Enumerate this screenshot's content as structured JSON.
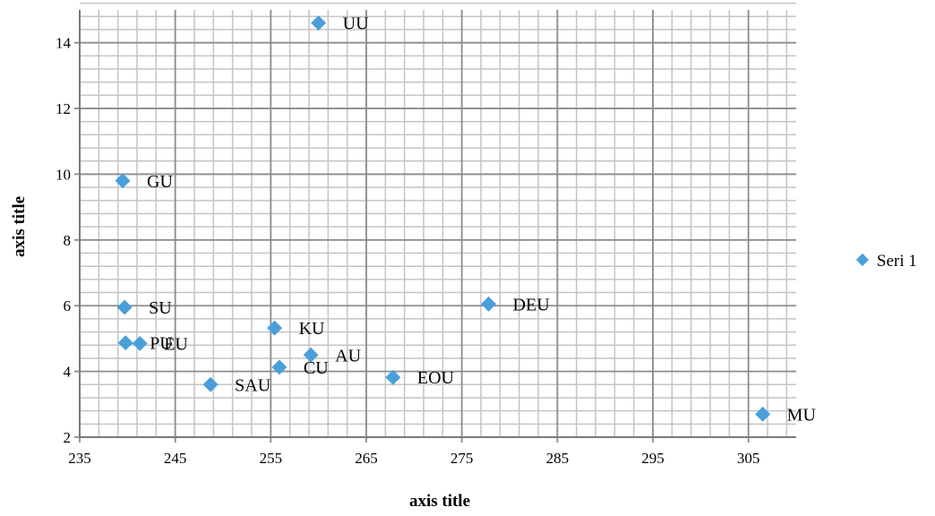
{
  "chart_data": {
    "type": "scatter",
    "xlabel": "axis title",
    "ylabel": "axis title",
    "xlim": [
      235,
      310
    ],
    "ylim": [
      2,
      15
    ],
    "x_ticks": [
      235,
      245,
      255,
      265,
      275,
      285,
      295,
      305
    ],
    "y_ticks": [
      2,
      4,
      6,
      8,
      10,
      12,
      14
    ],
    "x_minor_step": 2,
    "y_minor_step": 0.4,
    "grid": true,
    "legend_position": "right",
    "marker_color": "#4a9fdb",
    "series": [
      {
        "name": "Seri 1",
        "points": [
          {
            "label": "UU",
            "x": 260,
            "y": 14.6
          },
          {
            "label": "GU",
            "x": 239.5,
            "y": 9.8
          },
          {
            "label": "SU",
            "x": 239.7,
            "y": 5.95
          },
          {
            "label": "PU",
            "x": 239.8,
            "y": 4.87
          },
          {
            "label": "EU",
            "x": 241.3,
            "y": 4.85
          },
          {
            "label": "KU",
            "x": 255.4,
            "y": 5.32
          },
          {
            "label": "AU",
            "x": 259.2,
            "y": 4.5
          },
          {
            "label": "CU",
            "x": 255.9,
            "y": 4.13
          },
          {
            "label": "SAU",
            "x": 248.7,
            "y": 3.6
          },
          {
            "label": "DEU",
            "x": 277.8,
            "y": 6.05
          },
          {
            "label": "EOU",
            "x": 267.8,
            "y": 3.82
          },
          {
            "label": "MU",
            "x": 306.5,
            "y": 2.7
          }
        ]
      }
    ]
  }
}
